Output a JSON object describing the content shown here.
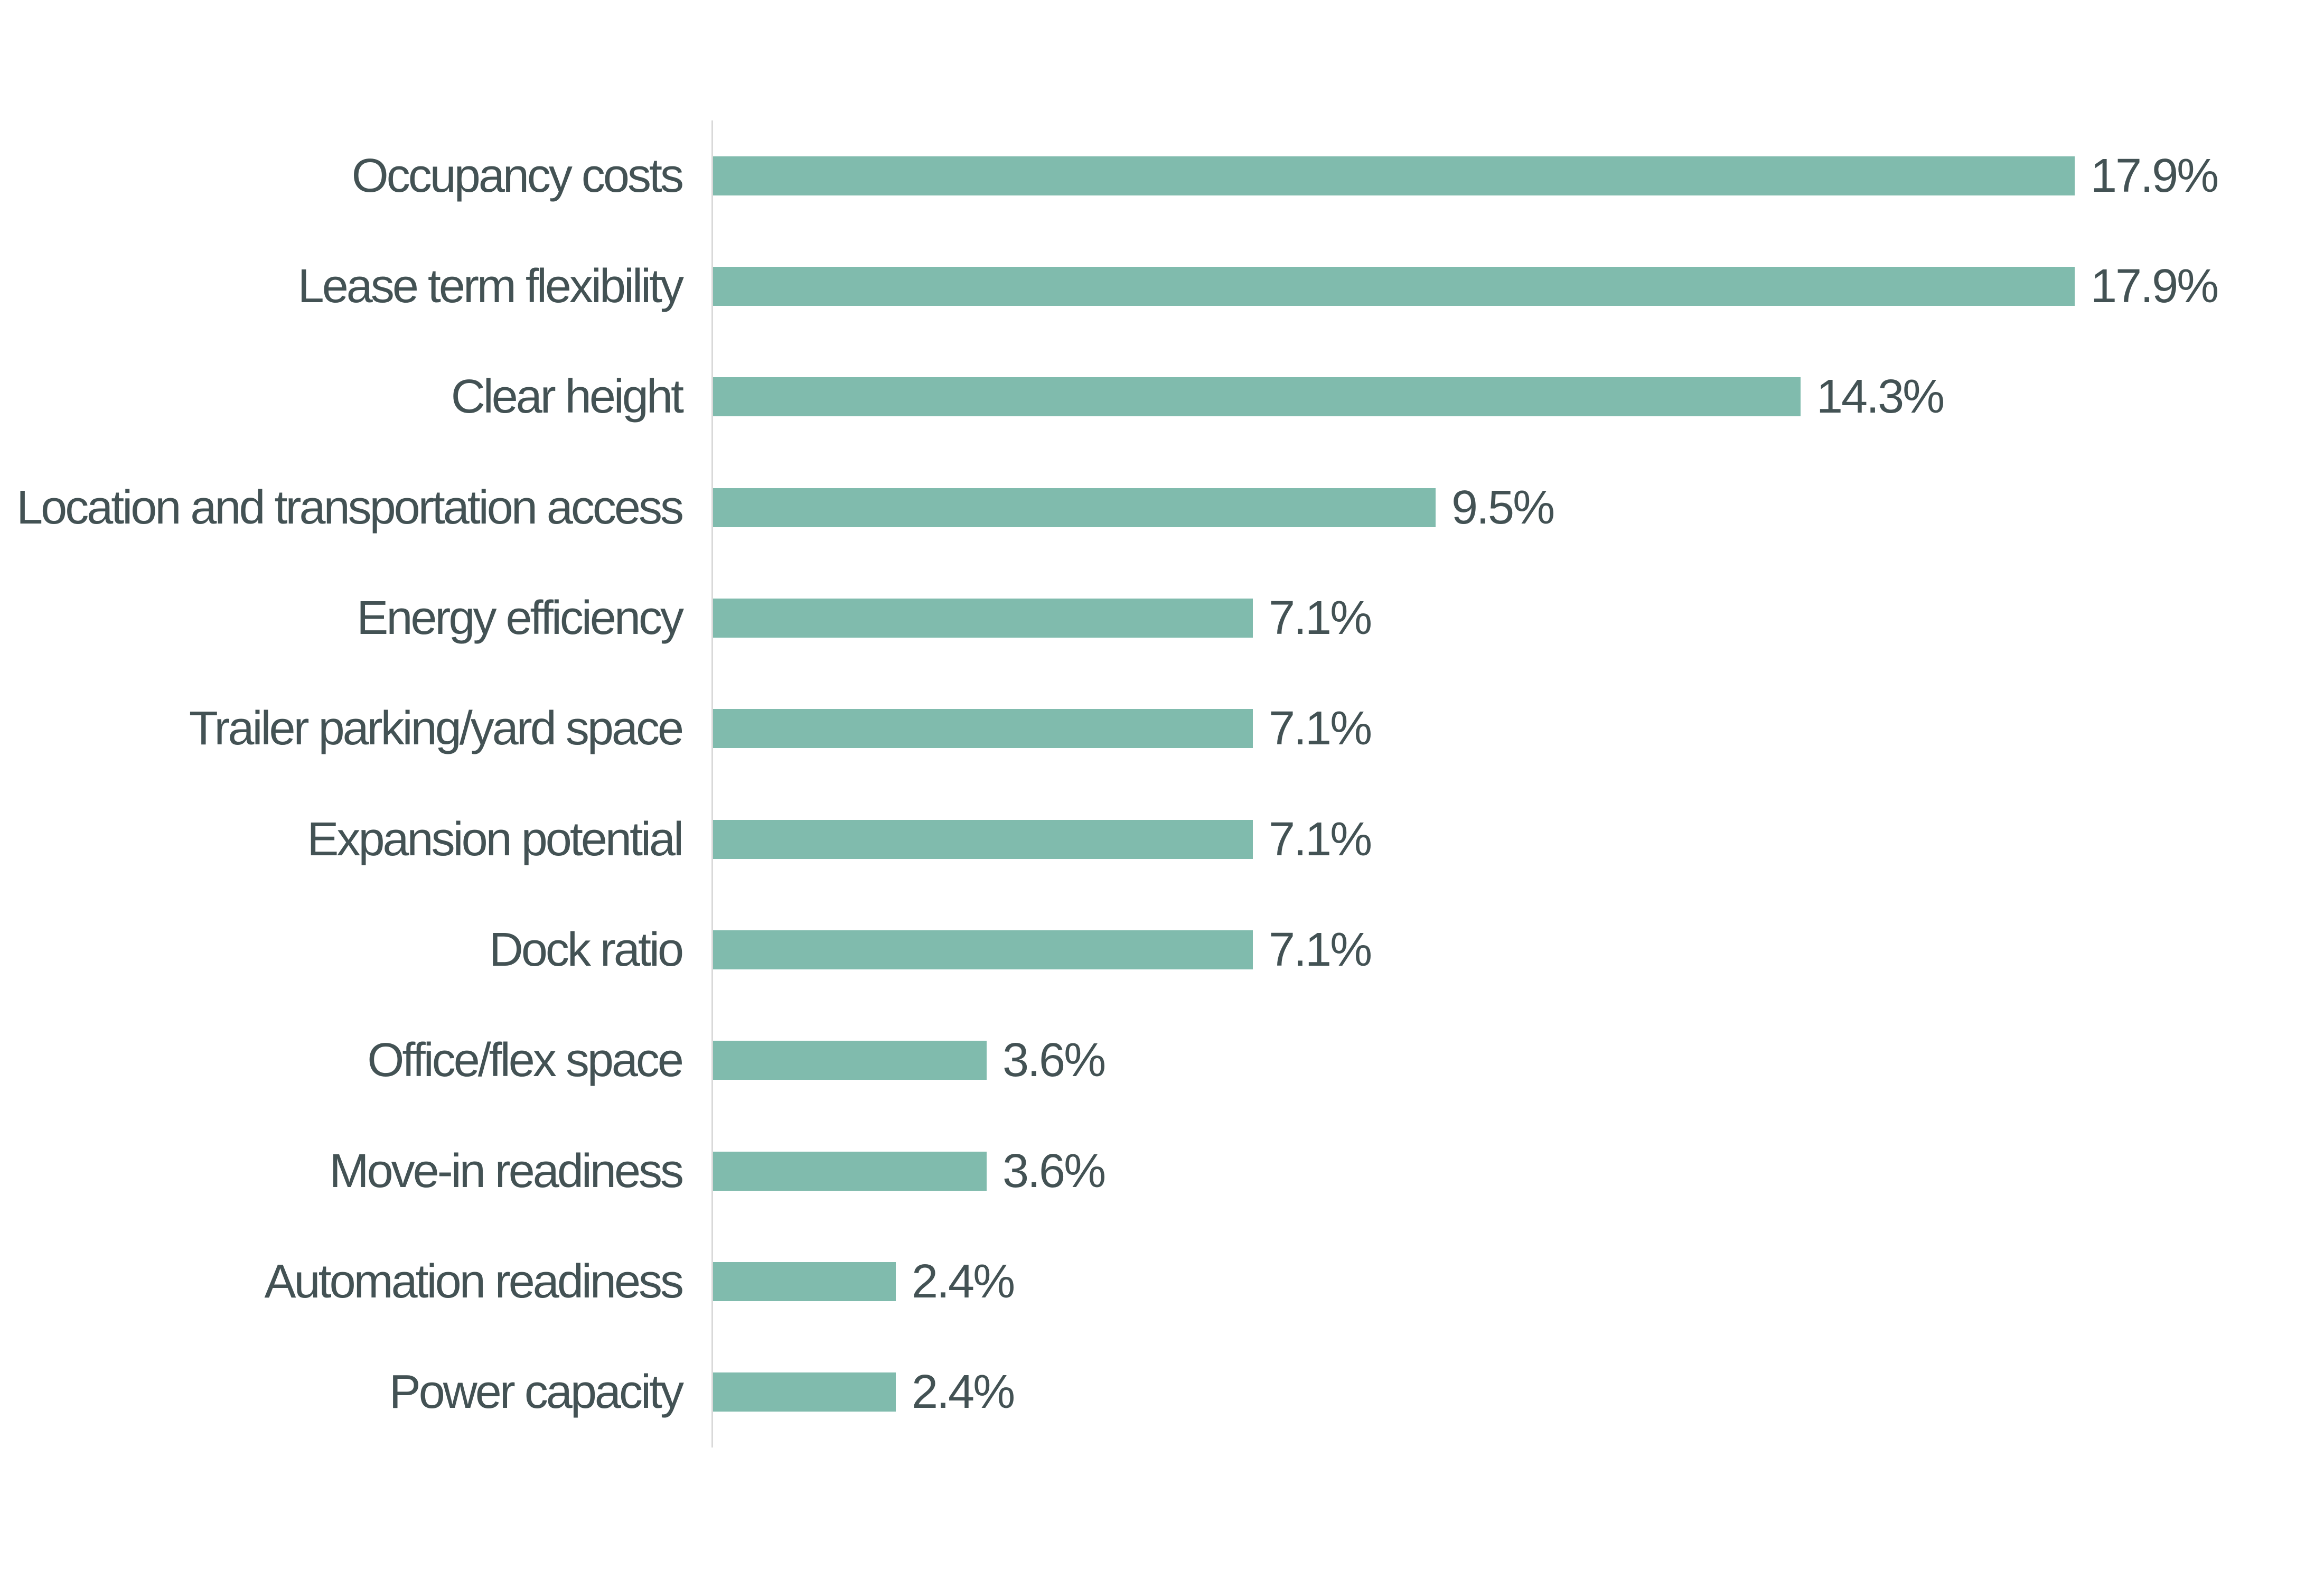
{
  "chart_data": {
    "type": "bar",
    "orientation": "horizontal",
    "title": "",
    "xlabel": "",
    "ylabel": "",
    "categories": [
      "Occupancy costs",
      "Lease term flexibility",
      "Clear height",
      "Location and transportation access",
      "Energy efficiency",
      "Trailer parking/yard space",
      "Expansion potential",
      "Dock ratio",
      "Office/flex space",
      "Move-in readiness",
      "Automation readiness",
      "Power capacity"
    ],
    "values": [
      17.9,
      17.9,
      14.3,
      9.5,
      7.1,
      7.1,
      7.1,
      7.1,
      3.6,
      3.6,
      2.4,
      2.4
    ],
    "value_labels": [
      "17.9%",
      "17.9%",
      "14.3%",
      "9.5%",
      "7.1%",
      "7.1%",
      "7.1%",
      "7.1%",
      "3.6%",
      "3.6%",
      "2.4%",
      "2.4%"
    ],
    "xlim": [
      0,
      18.6
    ],
    "grid": false,
    "legend": false,
    "bar_color": "#80BBAD",
    "label_color": "#435254",
    "axis_line_color": "#D9D9D9",
    "background_color": "#FFFFFF"
  }
}
